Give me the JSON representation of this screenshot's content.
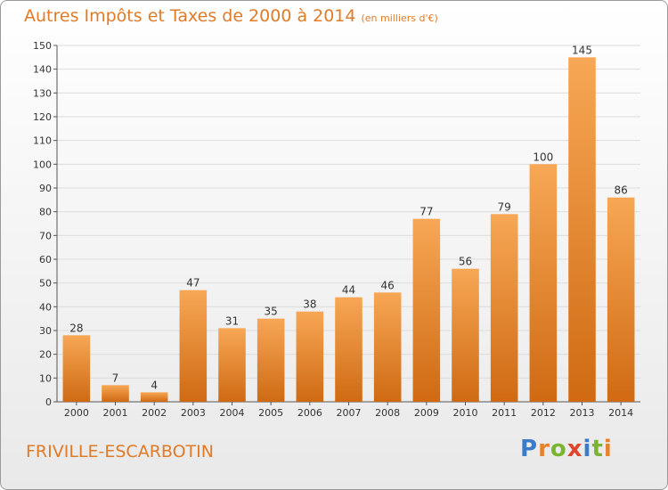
{
  "title": "Autres Impôts et Taxes de 2000 à 2014",
  "unit_label": "(en milliers d'€)",
  "town": "FRIVILLE-ESCARBOTIN",
  "logo": {
    "text": "Proxiti",
    "letter_colors": [
      "#3a7cc9",
      "#e8812b",
      "#7bb431",
      "#e2432d",
      "#3a7cc9",
      "#7bb431",
      "#e8812b"
    ]
  },
  "colors": {
    "bar_top": "#f7a755",
    "bar_bottom": "#cf6a12",
    "text": "#e07b27"
  },
  "chart_data": {
    "type": "bar",
    "categories": [
      "2000",
      "2001",
      "2002",
      "2003",
      "2004",
      "2005",
      "2006",
      "2007",
      "2008",
      "2009",
      "2010",
      "2011",
      "2012",
      "2013",
      "2014"
    ],
    "values": [
      28,
      7,
      4,
      47,
      31,
      35,
      38,
      44,
      46,
      77,
      56,
      79,
      100,
      145,
      86
    ],
    "ylim": [
      0,
      150
    ],
    "yticks": [
      0,
      10,
      20,
      30,
      40,
      50,
      60,
      70,
      80,
      90,
      100,
      110,
      120,
      130,
      140,
      150
    ],
    "grid": true
  }
}
